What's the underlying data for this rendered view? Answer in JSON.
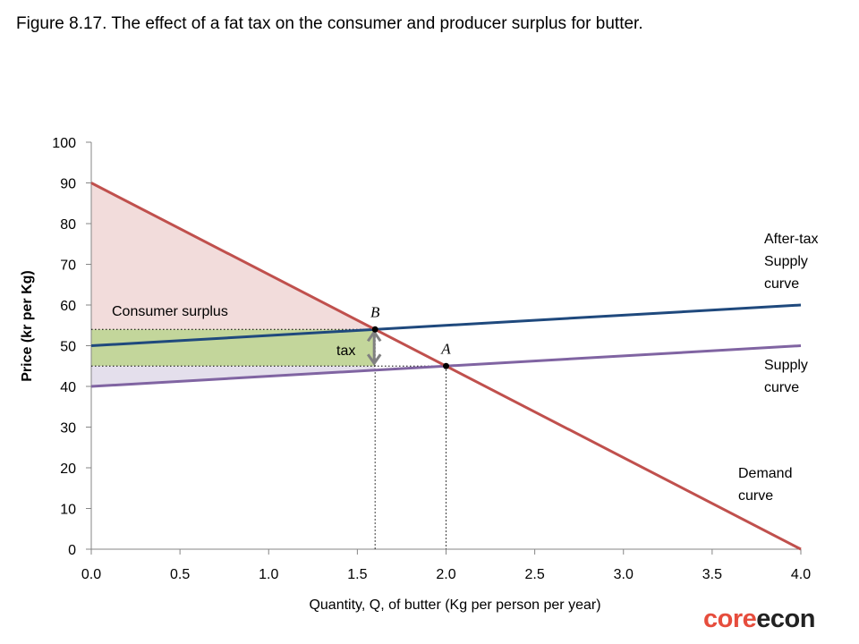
{
  "title": "Figure 8.17. The effect of a fat tax on the consumer and producer surplus for butter.",
  "logo": {
    "part1": "core",
    "part2": "econ"
  },
  "colors": {
    "demand": "#c0504d",
    "after_tax_supply": "#1f497d",
    "supply": "#8064a2",
    "consumer_surplus_fill": "#f2dcdb",
    "tax_revenue_fill": "#c3d69b",
    "producer_surplus_fill": "#e4dfec",
    "arrow": "#808080"
  },
  "chart_data": {
    "type": "line",
    "title": "",
    "xlabel": "Quantity, Q, of butter (Kg per person per year)",
    "ylabel": "Price (kr per Kg)",
    "xlim": [
      0,
      4
    ],
    "ylim": [
      0,
      100
    ],
    "xticks": [
      "0.0",
      "0.5",
      "1.0",
      "1.5",
      "2.0",
      "2.5",
      "3.0",
      "3.5",
      "4.0"
    ],
    "yticks": [
      "0",
      "10",
      "20",
      "30",
      "40",
      "50",
      "60",
      "70",
      "80",
      "90",
      "100"
    ],
    "series": [
      {
        "name": "After-tax Supply curve",
        "label_lines": [
          "After-tax",
          "Supply",
          "curve"
        ],
        "x": [
          0,
          4
        ],
        "y": [
          50,
          60
        ]
      },
      {
        "name": "Supply curve",
        "label_lines": [
          "Supply",
          "curve"
        ],
        "x": [
          0,
          4
        ],
        "y": [
          40,
          50
        ]
      },
      {
        "name": "Demand curve",
        "label_lines": [
          "Demand",
          "curve"
        ],
        "x": [
          0,
          4
        ],
        "y": [
          90,
          0
        ]
      }
    ],
    "points": [
      {
        "label": "B",
        "x": 1.6,
        "y": 54
      },
      {
        "label": "A",
        "x": 2.0,
        "y": 45
      }
    ],
    "annotations": {
      "consumer_surplus": "Consumer surplus",
      "tax": "tax"
    }
  }
}
